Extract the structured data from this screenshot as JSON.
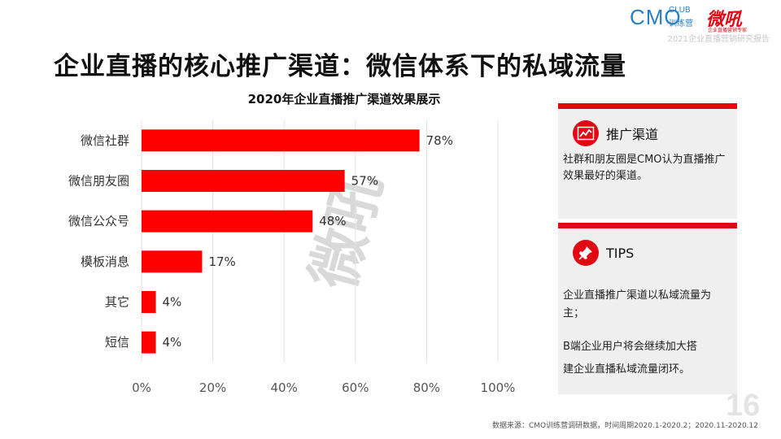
{
  "header": {
    "logo_cmo": "CMO",
    "logo_club": "CLUB",
    "logo_train": "训练营",
    "logo_weihou": "微吼",
    "logo_sub": "企业直播营销专家",
    "subtitle": "2021企业直播营销研究报告"
  },
  "page_title": "企业直播的核心推广渠道：微信体系下的私域流量",
  "chart_data": {
    "type": "bar",
    "orientation": "horizontal",
    "title": "2020年企业直播推广渠道效果展示",
    "categories": [
      "微信社群",
      "微信朋友圈",
      "微信公众号",
      "模板消息",
      "其它",
      "短信"
    ],
    "values": [
      78,
      57,
      48,
      17,
      4,
      4
    ],
    "value_labels": [
      "78%",
      "57%",
      "48%",
      "17%",
      "4%",
      "4%"
    ],
    "x_ticks": [
      "0%",
      "20%",
      "40%",
      "60%",
      "80%",
      "100%"
    ],
    "xlim": [
      0,
      100
    ],
    "bar_color": "#ff0000",
    "grid": true,
    "watermark": "微吼"
  },
  "cards": {
    "channel": {
      "title": "推广渠道",
      "icon": "line-chart-icon",
      "lines": [
        "社群和朋友圈是CMO认为直播推广",
        "效果最好的渠道。"
      ]
    },
    "tips": {
      "title": "TIPS",
      "icon": "pushpin-icon",
      "tip1": [
        "企业直播推广渠道以私域流量为",
        "主；"
      ],
      "tip2": [
        "B端企业用户将会继续加大搭",
        "建企业直播私域流量闭环。"
      ]
    }
  },
  "page_number": "16",
  "source": "数据来源：CMO训练营调研数据，时间周期2020.1-2020.2；2020.11-2020.12",
  "colors": {
    "accent": "#e30613",
    "card_bg": "#efefef",
    "logo_blue": "#2a7fc0"
  }
}
